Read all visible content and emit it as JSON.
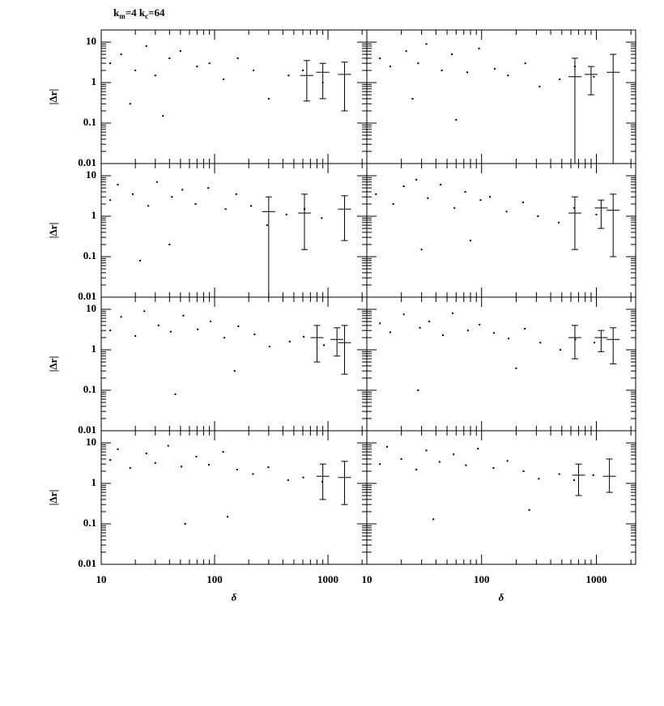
{
  "chart_data": {
    "type": "scatter",
    "title_parts": [
      "k",
      "m",
      "=4  k",
      "c",
      "=64"
    ],
    "xlabel": "δ",
    "ylabel": "|Δr|",
    "log_x": true,
    "log_y": true,
    "color": "#000000",
    "xlim": [
      10,
      2200
    ],
    "ylim": [
      0.01,
      20
    ],
    "xticks": [
      10,
      100,
      1000
    ],
    "yticks": [
      0.01,
      0.1,
      1,
      10
    ],
    "panels": [
      {
        "x": [
          12,
          15,
          20,
          25,
          30,
          40,
          50,
          70,
          90,
          120,
          160,
          220,
          300,
          450,
          600,
          900,
          35,
          18
        ],
        "y": [
          3,
          5,
          2,
          8,
          1.5,
          4,
          6,
          2.5,
          3,
          1.2,
          4,
          2,
          0.4,
          1.5,
          2,
          1,
          0.15,
          0.3
        ],
        "bin_x": [
          650,
          900,
          1400
        ],
        "bin_y": [
          1.5,
          1.8,
          1.6
        ],
        "bin_lo": [
          0.35,
          0.4,
          0.2
        ],
        "bin_hi": [
          3.5,
          3,
          3.2
        ]
      },
      {
        "x": [
          13,
          16,
          22,
          28,
          33,
          45,
          55,
          75,
          95,
          130,
          170,
          240,
          320,
          480,
          650,
          950,
          60,
          25
        ],
        "y": [
          4,
          2.5,
          6,
          3,
          9,
          2,
          5,
          1.8,
          7,
          2.2,
          1.5,
          3,
          0.8,
          1.2,
          2.5,
          1.4,
          0.12,
          0.4
        ],
        "bin_x": [
          650,
          900,
          1400
        ],
        "bin_y": [
          1.4,
          1.6,
          1.8
        ],
        "bin_lo": [
          0.01,
          0.5,
          0.01
        ],
        "bin_hi": [
          4,
          2.5,
          5
        ]
      },
      {
        "x": [
          12,
          14,
          19,
          26,
          31,
          42,
          52,
          68,
          88,
          125,
          155,
          210,
          290,
          430,
          620,
          880,
          40,
          22
        ],
        "y": [
          2.5,
          6,
          3.5,
          1.8,
          7,
          3,
          4.5,
          2,
          5,
          1.5,
          3.5,
          1.8,
          0.6,
          1.1,
          1.5,
          0.9,
          0.2,
          0.08
        ],
        "bin_x": [
          300,
          620,
          1400
        ],
        "bin_y": [
          1.3,
          1.2,
          1.5
        ],
        "bin_lo": [
          0.01,
          0.15,
          0.25
        ],
        "bin_hi": [
          3,
          3.5,
          3.2
        ]
      },
      {
        "x": [
          12,
          17,
          21,
          27,
          34,
          44,
          58,
          72,
          98,
          118,
          165,
          230,
          310,
          470,
          640,
          1000,
          30,
          80
        ],
        "y": [
          3.5,
          2,
          5.5,
          8,
          2.8,
          6,
          1.6,
          4,
          2.5,
          3,
          1.3,
          2.2,
          1,
          0.7,
          1.6,
          1.1,
          0.15,
          0.25
        ],
        "bin_x": [
          650,
          1100,
          1400
        ],
        "bin_y": [
          1.2,
          1.6,
          1.4
        ],
        "bin_lo": [
          0.15,
          0.5,
          0.1
        ],
        "bin_hi": [
          3,
          2.5,
          3.5
        ]
      },
      {
        "x": [
          12,
          15,
          20,
          24,
          32,
          41,
          53,
          71,
          92,
          122,
          162,
          225,
          305,
          460,
          610,
          920,
          45,
          150
        ],
        "y": [
          3,
          6.5,
          2.2,
          9,
          4,
          2.8,
          7,
          3.2,
          5,
          2,
          3.8,
          2.4,
          1.2,
          1.6,
          2.1,
          1.3,
          0.08,
          0.3
        ],
        "bin_x": [
          800,
          1200,
          1400
        ],
        "bin_y": [
          2,
          1.8,
          1.5
        ],
        "bin_lo": [
          0.5,
          0.7,
          0.25
        ],
        "bin_hi": [
          4,
          3.5,
          4
        ]
      },
      {
        "x": [
          13,
          16,
          21,
          29,
          35,
          46,
          56,
          76,
          96,
          128,
          172,
          238,
          325,
          485,
          655,
          960,
          28,
          200
        ],
        "y": [
          4.5,
          2.7,
          7.5,
          3.5,
          5,
          2.3,
          8,
          3,
          4.2,
          2.6,
          1.9,
          3.3,
          1.5,
          1,
          1.8,
          1.5,
          0.1,
          0.35
        ],
        "bin_x": [
          650,
          1100,
          1400
        ],
        "bin_y": [
          2,
          2,
          1.8
        ],
        "bin_lo": [
          0.6,
          0.9,
          0.45
        ],
        "bin_hi": [
          4,
          3,
          3.5
        ]
      },
      {
        "x": [
          12,
          14,
          18,
          25,
          30,
          39,
          51,
          69,
          89,
          119,
          158,
          218,
          298,
          445,
          605,
          890,
          55,
          130
        ],
        "y": [
          3.8,
          7,
          2.4,
          5.5,
          3.2,
          8.5,
          2.6,
          4.6,
          2.9,
          6,
          2.2,
          1.7,
          2.5,
          1.2,
          1.4,
          1.1,
          0.1,
          0.15
        ],
        "bin_x": [
          900,
          1400
        ],
        "bin_y": [
          1.5,
          1.4
        ],
        "bin_lo": [
          0.4,
          0.3
        ],
        "bin_hi": [
          3,
          3.5
        ]
      },
      {
        "x": [
          13,
          15,
          20,
          27,
          33,
          43,
          57,
          73,
          93,
          127,
          168,
          232,
          315,
          475,
          640,
          940,
          38,
          260
        ],
        "y": [
          3,
          8,
          4,
          2.2,
          6.5,
          3.4,
          5.2,
          2.8,
          7.2,
          2.4,
          3.6,
          2,
          1.3,
          1.7,
          1.2,
          1.6,
          0.13,
          0.22
        ],
        "bin_x": [
          700,
          1300
        ],
        "bin_y": [
          1.6,
          1.5
        ],
        "bin_lo": [
          0.5,
          0.6
        ],
        "bin_hi": [
          3,
          4
        ]
      }
    ]
  }
}
